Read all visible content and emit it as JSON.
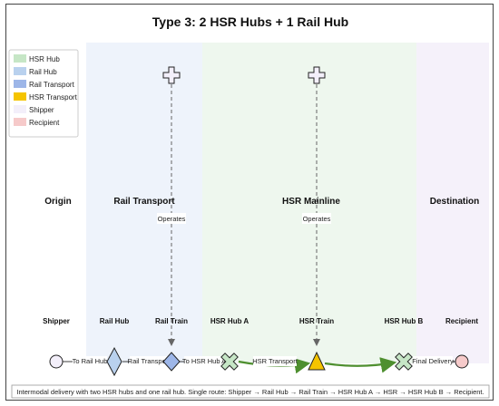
{
  "title": "Type 3: 2 HSR Hubs + 1 Rail Hub",
  "legend": [
    {
      "label": "HSR Hub",
      "color": "#c6e6c6"
    },
    {
      "label": "Rail Hub",
      "color": "#b9d1ee"
    },
    {
      "label": "Rail Transport",
      "color": "#9db6e8"
    },
    {
      "label": "HSR Transport",
      "color": "#f5c400"
    },
    {
      "label": "Shipper",
      "color": "#f3effa"
    },
    {
      "label": "Recipient",
      "color": "#f6caca"
    }
  ],
  "zones": {
    "origin": "Origin",
    "rail": "Rail Transport",
    "hsr": "HSR Mainline",
    "destination": "Destination"
  },
  "nodes": {
    "shipper": "Shipper",
    "rail_hub": "Rail Hub",
    "rail_train": "Rail Train",
    "hsr_hub_a": "HSR Hub A",
    "hsr_train": "HSR Train",
    "hsr_hub_b": "HSR Hub B",
    "recipient": "Recipient"
  },
  "edges": {
    "to_rail_hub": "To Rail Hub",
    "rail_transport": "Rail Transport",
    "to_hsr_hub_a": "To HSR Hub A",
    "hsr_transport": "HSR Transport",
    "final_delivery": "Final Delivery",
    "operates_left": "Operates",
    "operates_right": "Operates"
  },
  "caption": "Intermodal delivery with two HSR hubs and one rail hub. Single route: Shipper → Rail Hub → Rail Train → HSR Hub A → HSR → HSR Hub B → Recipient.",
  "colors": {
    "rail_zone": "#eef3fb",
    "hsr_zone": "#eef7ee",
    "dest_zone": "#f5f1fa",
    "hsr_line": "#4e8f2f",
    "rail_line": "#666666"
  }
}
